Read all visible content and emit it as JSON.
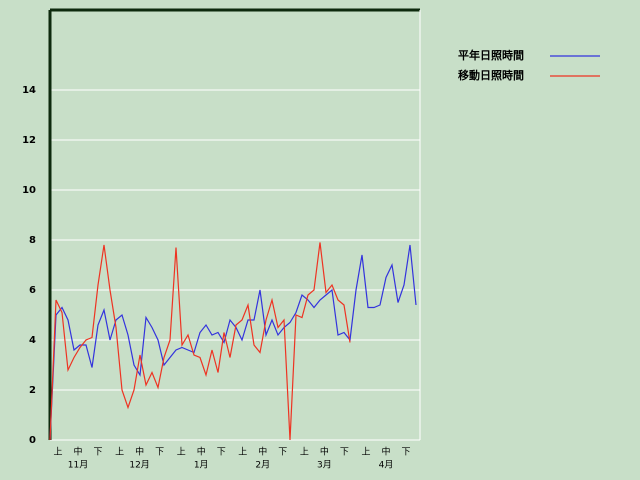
{
  "chart_data": {
    "type": "line",
    "ylim": [
      0,
      17.2
    ],
    "yticks": [
      0,
      2,
      4,
      6,
      8,
      10,
      12,
      14
    ],
    "grid": true,
    "x_labels": [
      "上",
      "中",
      "下",
      "上",
      "中",
      "下",
      "上",
      "中",
      "下",
      "上",
      "中",
      "下",
      "上",
      "中",
      "下",
      "上",
      "中",
      "下"
    ],
    "months": [
      "11月",
      "12月",
      "1月",
      "2月",
      "3月",
      "4月"
    ],
    "legend": "top-right",
    "series": [
      {
        "name": "平年日照時間",
        "color": "#3333dd",
        "values": [
          0,
          5.0,
          5.3,
          4.8,
          3.6,
          3.8,
          3.8,
          2.9,
          4.6,
          5.2,
          4.0,
          4.8,
          5.0,
          4.2,
          3.0,
          2.6,
          4.9,
          4.5,
          4.0,
          3.0,
          3.3,
          3.6,
          3.7,
          3.6,
          3.5,
          4.3,
          4.6,
          4.2,
          4.3,
          3.9,
          4.8,
          4.5,
          4.0,
          4.8,
          4.8,
          6.0,
          4.2,
          4.8,
          4.2,
          4.5,
          4.7,
          5.1,
          5.8,
          5.6,
          5.3,
          5.6,
          5.8,
          6.0,
          4.2,
          4.3,
          4.0,
          6.0,
          7.4,
          5.3,
          5.3,
          5.4,
          6.5,
          7.0,
          5.5,
          6.2,
          7.8,
          5.4
        ]
      },
      {
        "name": "移動日照時間",
        "color": "#ee3322",
        "values": [
          0,
          5.6,
          5.1,
          2.8,
          3.3,
          3.7,
          4.0,
          4.1,
          6.2,
          7.8,
          6.0,
          4.5,
          2.0,
          1.3,
          2.0,
          3.4,
          2.2,
          2.7,
          2.1,
          3.3,
          4.0,
          7.7,
          3.8,
          4.2,
          3.4,
          3.3,
          2.6,
          3.6,
          2.7,
          4.3,
          3.3,
          4.6,
          4.8,
          5.4,
          3.8,
          3.5,
          4.8,
          5.6,
          4.5,
          4.8,
          0,
          5.0,
          4.9,
          5.8,
          6.0,
          7.9,
          5.9,
          6.2,
          5.6,
          5.4,
          3.9,
          null,
          null,
          null,
          null,
          null,
          null,
          null,
          null,
          null,
          null,
          null
        ]
      }
    ]
  }
}
